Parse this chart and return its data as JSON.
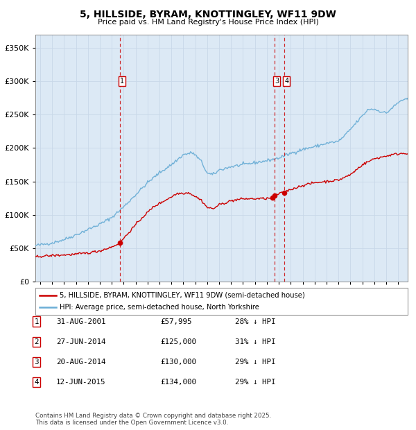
{
  "title": "5, HILLSIDE, BYRAM, KNOTTINGLEY, WF11 9DW",
  "subtitle": "Price paid vs. HM Land Registry's House Price Index (HPI)",
  "hpi_color": "#6baed6",
  "price_color": "#cc0000",
  "background_color": "#dce9f5",
  "plot_bg": "#ffffff",
  "ylim": [
    0,
    370000
  ],
  "yticks": [
    0,
    50000,
    100000,
    150000,
    200000,
    250000,
    300000,
    350000
  ],
  "xlim_start": 1994.6,
  "xlim_end": 2025.8,
  "legend_label_red": "5, HILLSIDE, BYRAM, KNOTTINGLEY, WF11 9DW (semi-detached house)",
  "legend_label_blue": "HPI: Average price, semi-detached house, North Yorkshire",
  "transactions": [
    {
      "num": 1,
      "date": "31-AUG-2001",
      "price": 57995,
      "price_str": "£57,995",
      "pct": "28%",
      "dir": "↓",
      "year": 2001.67
    },
    {
      "num": 2,
      "date": "27-JUN-2014",
      "price": 125000,
      "price_str": "£125,000",
      "pct": "31%",
      "dir": "↓",
      "year": 2014.49
    },
    {
      "num": 3,
      "date": "20-AUG-2014",
      "price": 130000,
      "price_str": "£130,000",
      "pct": "29%",
      "dir": "↓",
      "year": 2014.64
    },
    {
      "num": 4,
      "date": "12-JUN-2015",
      "price": 134000,
      "price_str": "£134,000",
      "pct": "29%",
      "dir": "↓",
      "year": 2015.45
    }
  ],
  "footnote1": "Contains HM Land Registry data © Crown copyright and database right 2025.",
  "footnote2": "This data is licensed under the Open Government Licence v3.0.",
  "hpi_anchors_x": [
    1994.6,
    1995.0,
    1996.0,
    1997.0,
    1998.0,
    1999.0,
    2000.0,
    2001.0,
    2002.0,
    2003.0,
    2004.0,
    2005.0,
    2006.0,
    2007.0,
    2007.8,
    2008.5,
    2009.0,
    2009.5,
    2010.0,
    2011.0,
    2012.0,
    2013.0,
    2014.0,
    2014.5,
    2015.0,
    2016.0,
    2017.0,
    2018.0,
    2019.0,
    2020.0,
    2020.5,
    2021.0,
    2022.0,
    2022.5,
    2023.0,
    2023.5,
    2024.0,
    2024.5,
    2025.3
  ],
  "hpi_anchors_y": [
    54000,
    55000,
    58000,
    63000,
    70000,
    78000,
    86000,
    96000,
    112000,
    130000,
    148000,
    163000,
    175000,
    190000,
    193000,
    180000,
    162000,
    160000,
    167000,
    172000,
    175000,
    178000,
    181000,
    183000,
    185000,
    192000,
    198000,
    202000,
    207000,
    210000,
    218000,
    228000,
    248000,
    258000,
    258000,
    255000,
    252000,
    260000,
    272000
  ],
  "price_anchors_x": [
    1994.6,
    1995.0,
    1996.0,
    1997.0,
    1998.0,
    1999.0,
    2000.0,
    2001.0,
    2001.67,
    2002.5,
    2003.5,
    2004.5,
    2005.5,
    2006.5,
    2007.5,
    2008.5,
    2009.0,
    2009.5,
    2010.0,
    2011.0,
    2012.0,
    2013.0,
    2014.0,
    2014.49,
    2014.64,
    2015.0,
    2015.45,
    2016.0,
    2017.0,
    2018.0,
    2019.0,
    2020.0,
    2021.0,
    2022.0,
    2023.0,
    2024.0,
    2024.5,
    2025.3
  ],
  "price_anchors_y": [
    37000,
    38000,
    39000,
    40000,
    41000,
    43000,
    46000,
    52000,
    57995,
    75000,
    95000,
    112000,
    122000,
    132000,
    133000,
    122000,
    111000,
    109000,
    115000,
    121000,
    124000,
    124000,
    124500,
    125000,
    130000,
    131000,
    134000,
    138000,
    144000,
    148000,
    150000,
    152000,
    160000,
    175000,
    184000,
    188000,
    190000,
    192000
  ]
}
